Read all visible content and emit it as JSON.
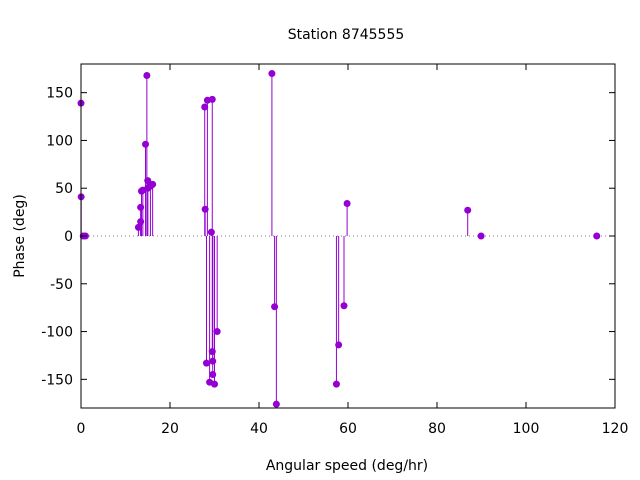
{
  "chart_data": {
    "type": "scatter",
    "style": "impulses-with-points",
    "title": "Station 8745555",
    "xlabel": "Angular speed (deg/hr)",
    "ylabel": "Phase (deg)",
    "xlim": [
      0,
      120
    ],
    "ylim": [
      -180,
      180
    ],
    "xticks": [
      0,
      20,
      40,
      60,
      80,
      100,
      120
    ],
    "yticks": [
      -150,
      -100,
      -50,
      0,
      50,
      100,
      150
    ],
    "zero_line": "dotted",
    "grid": false,
    "legend": "none",
    "color": "#9400d3",
    "points": [
      {
        "x": 0.0,
        "y": 139
      },
      {
        "x": 0.04,
        "y": 41
      },
      {
        "x": 0.5,
        "y": 0
      },
      {
        "x": 1.0,
        "y": 0
      },
      {
        "x": 12.9,
        "y": 9
      },
      {
        "x": 13.4,
        "y": 30
      },
      {
        "x": 13.4,
        "y": 15
      },
      {
        "x": 13.6,
        "y": 47
      },
      {
        "x": 13.9,
        "y": 48
      },
      {
        "x": 14.5,
        "y": 96
      },
      {
        "x": 14.8,
        "y": 168
      },
      {
        "x": 15.0,
        "y": 58
      },
      {
        "x": 15.0,
        "y": 50
      },
      {
        "x": 15.6,
        "y": 52
      },
      {
        "x": 16.1,
        "y": 54
      },
      {
        "x": 27.8,
        "y": 135
      },
      {
        "x": 27.9,
        "y": 28
      },
      {
        "x": 28.2,
        "y": -133
      },
      {
        "x": 28.4,
        "y": 142
      },
      {
        "x": 28.9,
        "y": -153
      },
      {
        "x": 29.3,
        "y": 4
      },
      {
        "x": 29.5,
        "y": 143
      },
      {
        "x": 29.5,
        "y": -121
      },
      {
        "x": 29.6,
        "y": -131
      },
      {
        "x": 29.6,
        "y": -145
      },
      {
        "x": 30.0,
        "y": -155
      },
      {
        "x": 30.6,
        "y": -100
      },
      {
        "x": 42.9,
        "y": 170
      },
      {
        "x": 43.5,
        "y": -74
      },
      {
        "x": 43.9,
        "y": -176
      },
      {
        "x": 57.4,
        "y": -155
      },
      {
        "x": 57.9,
        "y": -114
      },
      {
        "x": 59.1,
        "y": -73
      },
      {
        "x": 59.8,
        "y": 34
      },
      {
        "x": 86.9,
        "y": 27
      },
      {
        "x": 89.9,
        "y": 0
      },
      {
        "x": 115.9,
        "y": 0
      }
    ]
  }
}
